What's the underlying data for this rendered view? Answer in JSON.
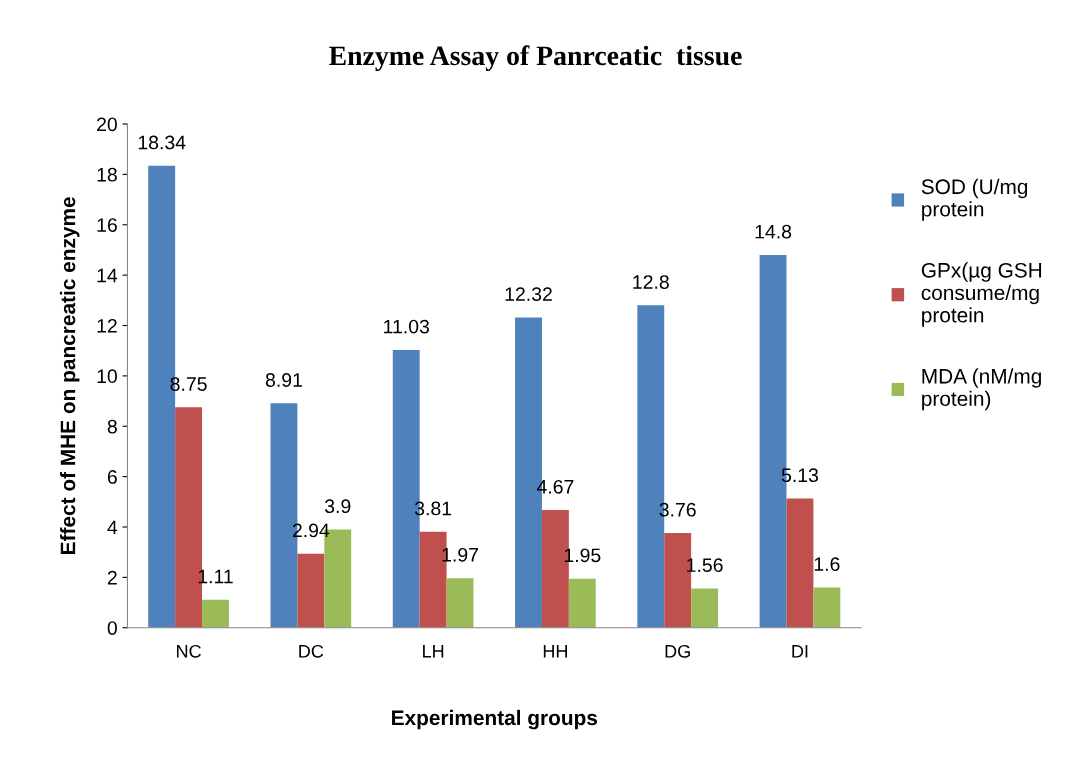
{
  "chart_data": {
    "type": "bar",
    "title": "Enzyme Assay of Panrceatic  tissue",
    "xlabel": "Experimental groups",
    "ylabel": "Effect of MHE on pancreatic enzyme",
    "categories": [
      "NC",
      "DC",
      "LH",
      "HH",
      "DG",
      "DI"
    ],
    "series": [
      {
        "name": "SOD (U/mg\nprotein",
        "color": "#4f81bd",
        "values": [
          18.34,
          8.91,
          11.03,
          12.32,
          12.8,
          14.8
        ]
      },
      {
        "name": "GPx(µg GSH\nconsume/mg\nprotein",
        "color": "#c0504d",
        "values": [
          8.75,
          2.94,
          3.81,
          4.67,
          3.76,
          5.13
        ]
      },
      {
        "name": "MDA (nM/mg\nprotein)",
        "color": "#9bbb59",
        "values": [
          1.11,
          3.9,
          1.97,
          1.95,
          1.56,
          1.6
        ]
      }
    ],
    "ylim": [
      0,
      20
    ],
    "yticks": [
      0,
      2,
      4,
      6,
      8,
      10,
      12,
      14,
      16,
      18,
      20
    ],
    "grid": false,
    "legend": "right",
    "data_labels": true
  }
}
